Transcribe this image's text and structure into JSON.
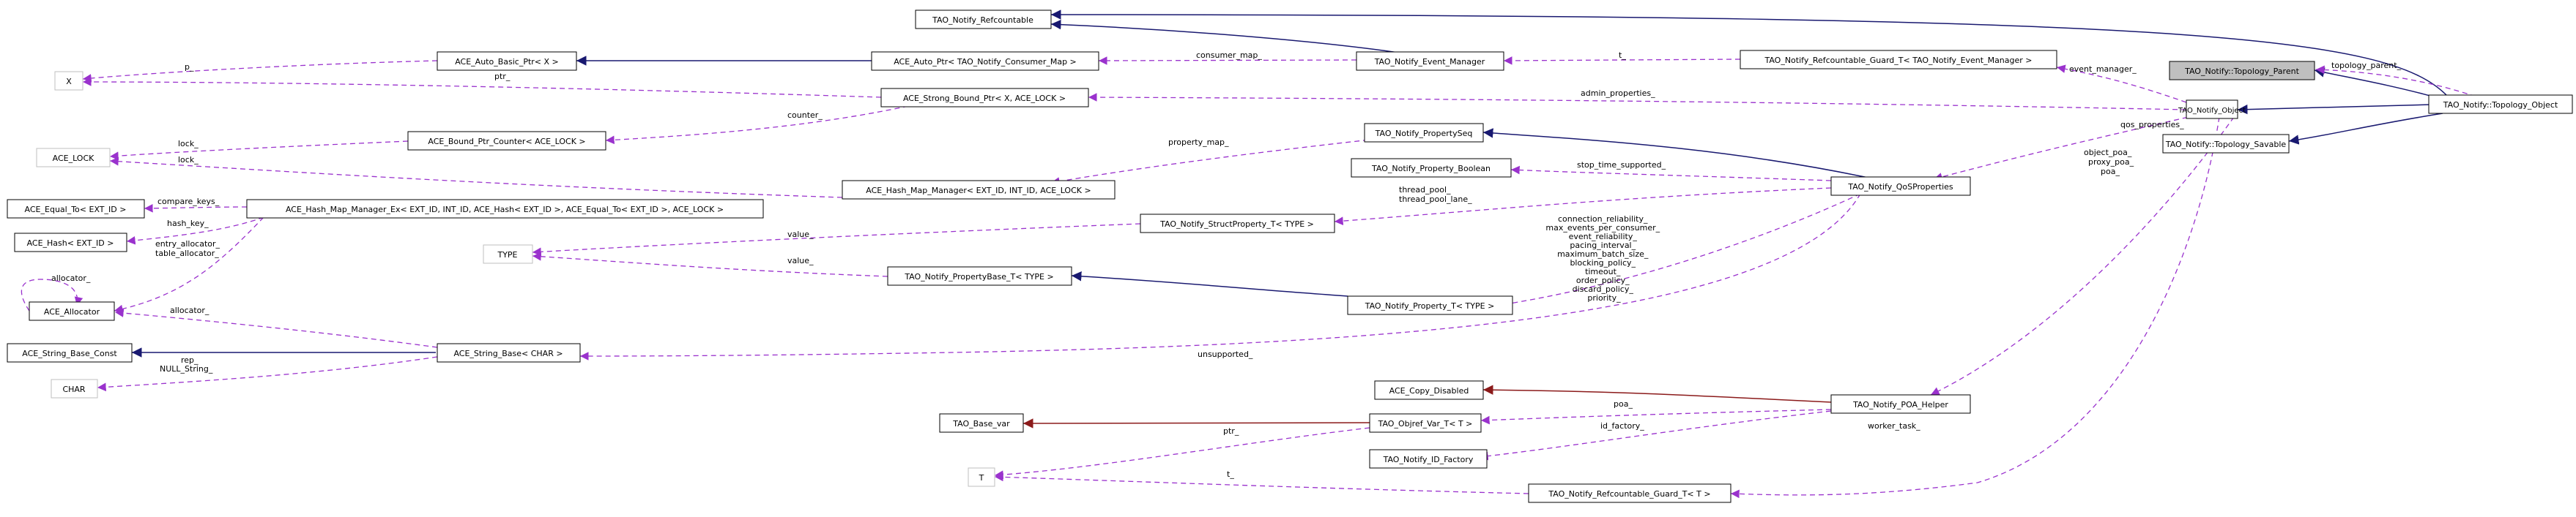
{
  "colors": {
    "inheritance": "#191970",
    "usage": "#9a32cd",
    "private_inheritance": "#8b1a1a",
    "node_border": "#000000",
    "node_border_external": "#bfbfbf",
    "highlight_fill": "#bfbfbf"
  },
  "nodes": [
    {
      "id": "refcountable",
      "label": "TAO_Notify_Refcountable"
    },
    {
      "id": "x",
      "label": "X"
    },
    {
      "id": "auto_basic_ptr",
      "label": "ACE_Auto_Basic_Ptr< X >"
    },
    {
      "id": "auto_ptr_consumer_map",
      "label": "ACE_Auto_Ptr< TAO_Notify_Consumer_Map >"
    },
    {
      "id": "event_manager",
      "label": "TAO_Notify_Event_Manager"
    },
    {
      "id": "guard_event_manager",
      "label": "TAO_Notify_Refcountable_Guard_T< TAO_Notify_Event_Manager >"
    },
    {
      "id": "topology_parent",
      "label": "TAO_Notify::Topology_Parent"
    },
    {
      "id": "strong_bound_ptr",
      "label": "ACE_Strong_Bound_Ptr< X, ACE_LOCK >"
    },
    {
      "id": "notify_object",
      "label": "TAO_Notify_Object"
    },
    {
      "id": "topology_object",
      "label": "TAO_Notify::Topology_Object"
    },
    {
      "id": "topology_savable",
      "label": "TAO_Notify::Topology_Savable"
    },
    {
      "id": "ace_lock",
      "label": "ACE_LOCK"
    },
    {
      "id": "bound_ptr_counter",
      "label": "ACE_Bound_Ptr_Counter< ACE_LOCK >"
    },
    {
      "id": "property_seq",
      "label": "TAO_Notify_PropertySeq"
    },
    {
      "id": "property_boolean",
      "label": "TAO_Notify_Property_Boolean"
    },
    {
      "id": "hash_map_manager",
      "label": "ACE_Hash_Map_Manager< EXT_ID, INT_ID, ACE_LOCK >"
    },
    {
      "id": "qos_properties",
      "label": "TAO_Notify_QoSProperties"
    },
    {
      "id": "equal_to",
      "label": "ACE_Equal_To< EXT_ID >"
    },
    {
      "id": "hash_map_manager_ex",
      "label": "ACE_Hash_Map_Manager_Ex< EXT_ID, INT_ID, ACE_Hash< EXT_ID >, ACE_Equal_To< EXT_ID >, ACE_LOCK >"
    },
    {
      "id": "struct_property",
      "label": "TAO_Notify_StructProperty_T< TYPE >"
    },
    {
      "id": "ace_hash",
      "label": "ACE_Hash< EXT_ID >"
    },
    {
      "id": "type",
      "label": "TYPE"
    },
    {
      "id": "property_base",
      "label": "TAO_Notify_PropertyBase_T< TYPE >"
    },
    {
      "id": "ace_allocator",
      "label": "ACE_Allocator"
    },
    {
      "id": "property_t",
      "label": "TAO_Notify_Property_T< TYPE >"
    },
    {
      "id": "string_base_const",
      "label": "ACE_String_Base_Const"
    },
    {
      "id": "string_base",
      "label": "ACE_String_Base< CHAR >"
    },
    {
      "id": "char",
      "label": "CHAR"
    },
    {
      "id": "copy_disabled",
      "label": "ACE_Copy_Disabled"
    },
    {
      "id": "poa_helper",
      "label": "TAO_Notify_POA_Helper"
    },
    {
      "id": "base_var",
      "label": "TAO_Base_var"
    },
    {
      "id": "object_var",
      "label": "TAO_Objref_Var_T< T >"
    },
    {
      "id": "id_factory",
      "label": "TAO_Notify_ID_Factory"
    },
    {
      "id": "t",
      "label": "T"
    },
    {
      "id": "guard_t",
      "label": "TAO_Notify_Refcountable_Guard_T< T >"
    }
  ],
  "edge_labels": [
    {
      "id": "p",
      "text": "p_"
    },
    {
      "id": "ptr_x",
      "text": "ptr_"
    },
    {
      "id": "consumer_map",
      "text": "consumer_map_"
    },
    {
      "id": "t_event_manager",
      "text": "t_"
    },
    {
      "id": "event_manager",
      "text": "event_manager_"
    },
    {
      "id": "topology_parent",
      "text": "topology_parent_"
    },
    {
      "id": "admin_properties",
      "text": "admin_properties_"
    },
    {
      "id": "counter",
      "text": "counter_"
    },
    {
      "id": "lock1",
      "text": "lock_"
    },
    {
      "id": "lock2",
      "text": "lock_"
    },
    {
      "id": "property_map",
      "text": "property_map_"
    },
    {
      "id": "qos_properties",
      "text": "qos_properties_"
    },
    {
      "id": "stop_time_supported",
      "text": "stop_time_supported_"
    },
    {
      "id": "thread_pool",
      "lines": [
        "thread_pool_",
        "thread_pool_lane_"
      ]
    },
    {
      "id": "compare_keys",
      "text": "compare_keys_"
    },
    {
      "id": "hash_key",
      "text": "hash_key_"
    },
    {
      "id": "allocators",
      "lines": [
        "entry_allocator_",
        "table_allocator_"
      ]
    },
    {
      "id": "value1",
      "text": "value_"
    },
    {
      "id": "value2",
      "text": "value_"
    },
    {
      "id": "qos_members",
      "lines": [
        "connection_reliability_",
        "max_events_per_consumer_",
        "event_reliability_",
        "pacing_interval_",
        "maximum_batch_size_",
        "blocking_policy_",
        "timeout_",
        "order_policy_",
        "discard_policy_",
        "priority_"
      ]
    },
    {
      "id": "allocator_self",
      "text": "allocator_"
    },
    {
      "id": "allocator",
      "text": "allocator_"
    },
    {
      "id": "rep_null",
      "lines": [
        "rep_",
        "NULL_String_"
      ]
    },
    {
      "id": "unsupported",
      "text": "unsupported_"
    },
    {
      "id": "poa_helper_members",
      "lines": [
        "object_poa_",
        "proxy_poa_",
        "poa_"
      ]
    },
    {
      "id": "poa",
      "text": "poa_"
    },
    {
      "id": "ptr_t",
      "text": "ptr_"
    },
    {
      "id": "id_factory",
      "text": "id_factory_"
    },
    {
      "id": "worker_task",
      "text": "worker_task_"
    },
    {
      "id": "t_t",
      "text": "t_"
    }
  ]
}
